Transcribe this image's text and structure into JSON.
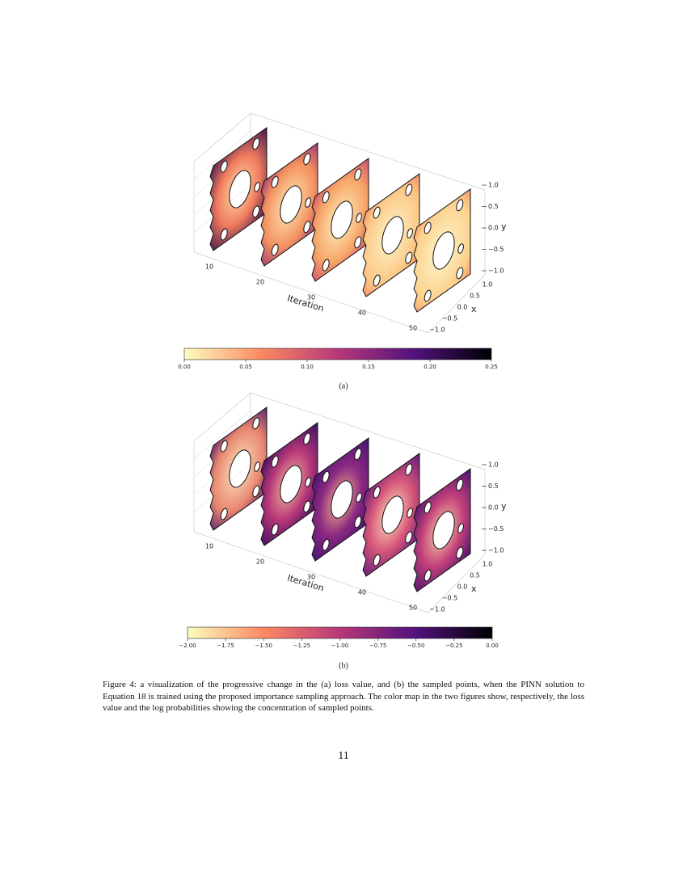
{
  "figures": [
    {
      "label": "(a)",
      "x_label": "Iteration",
      "iteration_ticks": [
        "10",
        "20",
        "30",
        "40",
        "50"
      ],
      "y_label": "y",
      "y_ticks": [
        "1.0",
        "0.5",
        "0.0",
        "−0.5",
        "−1.0"
      ],
      "x_axis_label": "x",
      "x_ticks": [
        "1.0",
        "0.5",
        "0.0",
        "−0.5",
        "−1.0"
      ],
      "colorbar_ticks": [
        "0.00",
        "0.05",
        "0.10",
        "0.15",
        "0.20",
        "0.25"
      ]
    },
    {
      "label": "(b)",
      "x_label": "Iteration",
      "iteration_ticks": [
        "10",
        "20",
        "30",
        "40",
        "50"
      ],
      "y_label": "y",
      "y_ticks": [
        "1.0",
        "0.5",
        "0.0",
        "−0.5",
        "−1.0"
      ],
      "x_axis_label": "x",
      "x_ticks": [
        "1.0",
        "0.5",
        "0.0",
        "−0.5",
        "−1.0"
      ],
      "colorbar_ticks": [
        "−2.00",
        "−1.75",
        "−1.50",
        "−1.25",
        "−1.00",
        "−0.75",
        "−0.50",
        "−0.25",
        "0.00"
      ]
    }
  ],
  "caption": "Figure 4: a visualization of the progressive change in the (a) loss value, and (b) the sampled points, when the PINN solution to Equation 18 is trained using the proposed importance sampling approach. The color map in the two figures show, respectively, the loss value and the log probabilities showing the concentration of sampled points.",
  "page_number": "11"
}
